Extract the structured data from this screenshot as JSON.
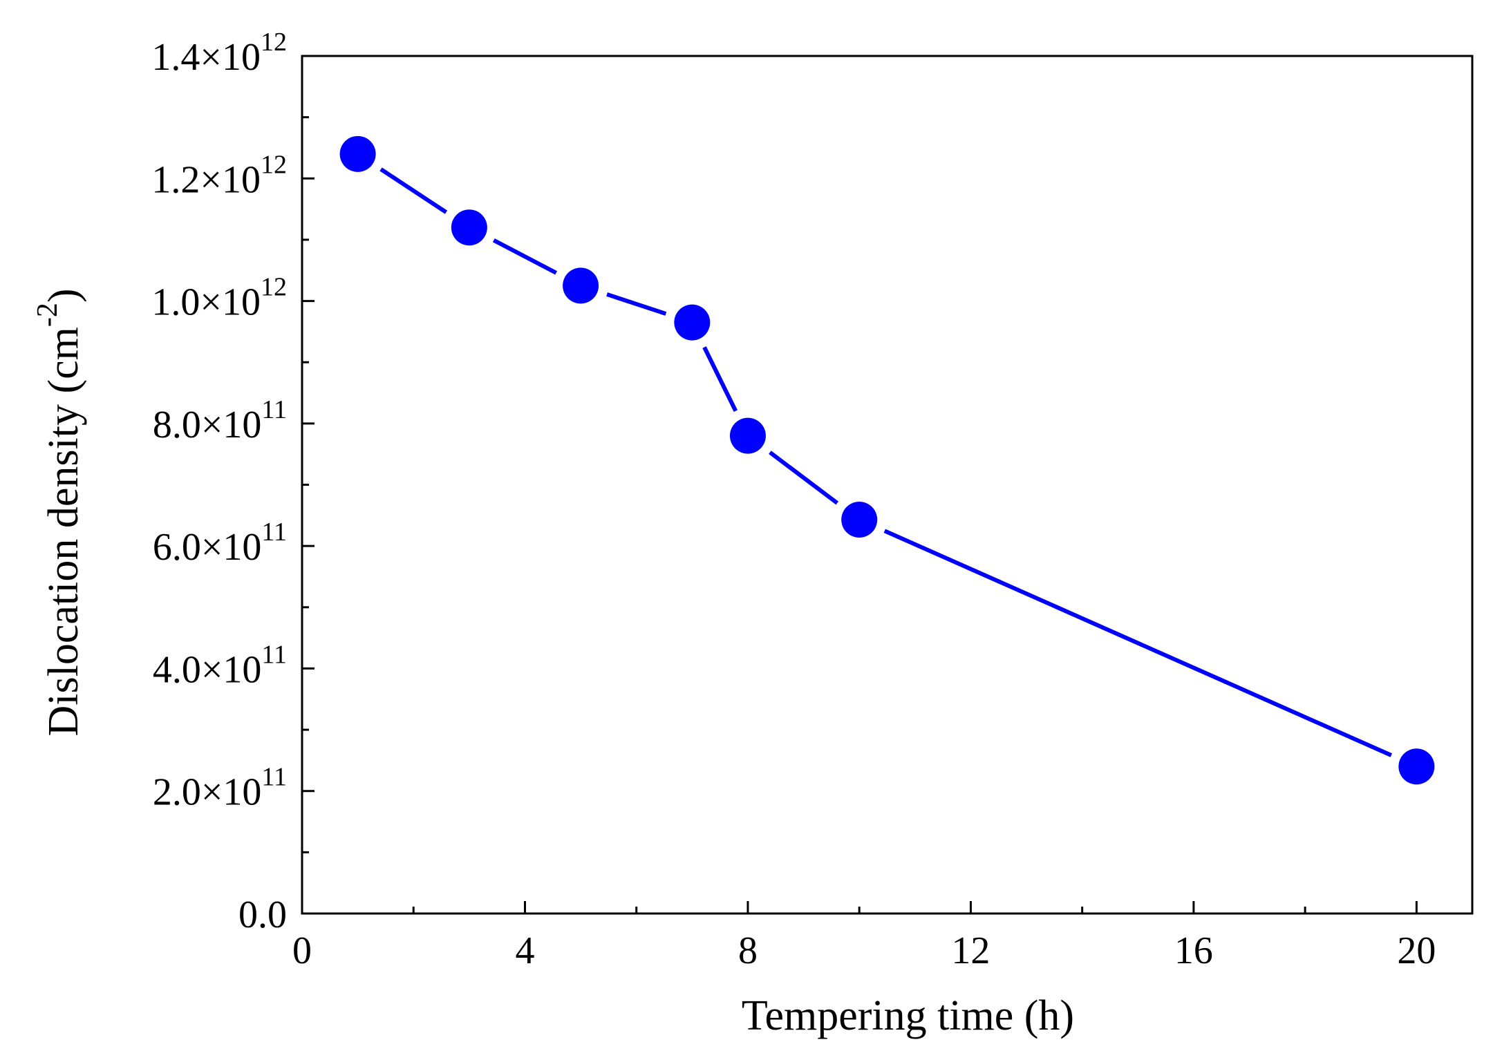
{
  "chart_data": {
    "type": "line",
    "title": "",
    "xlabel": "Tempering time (h)",
    "ylabel": {
      "text": "Dislocation density (cm",
      "sup": "-2",
      "close": ")"
    },
    "xlim": [
      0,
      21
    ],
    "ylim": [
      0,
      1400000000000.0
    ],
    "x_ticks": [
      {
        "value": 0,
        "label": "0"
      },
      {
        "value": 4,
        "label": "4"
      },
      {
        "value": 8,
        "label": "8"
      },
      {
        "value": 12,
        "label": "12"
      },
      {
        "value": 16,
        "label": "16"
      },
      {
        "value": 20,
        "label": "20"
      }
    ],
    "x_minor_ticks": [
      2,
      6,
      10,
      14,
      18
    ],
    "y_ticks": [
      {
        "value": 0,
        "mantissa": "0.0",
        "exp": ""
      },
      {
        "value": 200000000000.0,
        "mantissa": "2.0×10",
        "exp": "11"
      },
      {
        "value": 400000000000.0,
        "mantissa": "4.0×10",
        "exp": "11"
      },
      {
        "value": 600000000000.0,
        "mantissa": "6.0×10",
        "exp": "11"
      },
      {
        "value": 800000000000.0,
        "mantissa": "8.0×10",
        "exp": "11"
      },
      {
        "value": 1000000000000.0,
        "mantissa": "1.0×10",
        "exp": "12"
      },
      {
        "value": 1200000000000.0,
        "mantissa": "1.2×10",
        "exp": "12"
      },
      {
        "value": 1400000000000.0,
        "mantissa": "1.4×10",
        "exp": "12"
      }
    ],
    "series": [
      {
        "name": "Dislocation density",
        "color": "#0000ff",
        "x": [
          1,
          3,
          5,
          7,
          8,
          10,
          20
        ],
        "y": [
          1240000000000.0,
          1120000000000.0,
          1025000000000.0,
          965000000000.0,
          780000000000.0,
          643000000000.0,
          240000000000.0
        ]
      }
    ],
    "grid": false,
    "legend": "none"
  }
}
